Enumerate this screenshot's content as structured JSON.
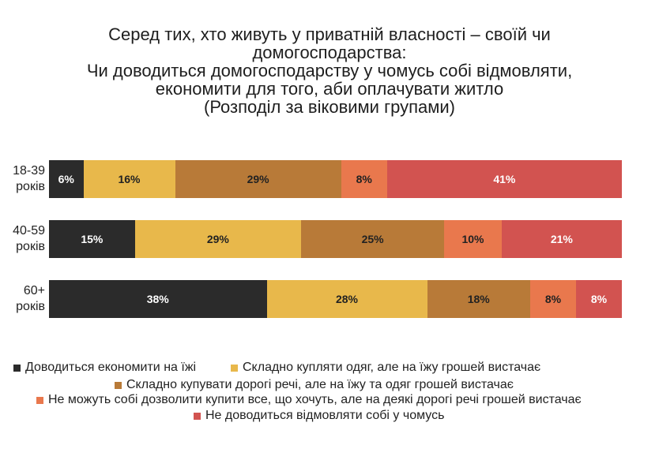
{
  "chart_data": {
    "type": "bar",
    "orientation": "horizontal",
    "stacked": true,
    "title": "Серед тих, хто живуть у приватній власності – своїй чи\nдомогосподарства:\nЧи доводиться домогосподарству у чомусь собі відмовляти,\nекономити для того, аби оплачувати житло",
    "subtitle": "(Розподіл за віковими групами)",
    "xlim": [
      0,
      100
    ],
    "grid": false,
    "legend_position": "bottom",
    "categories": [
      "18-39 років",
      "40-59 років",
      "60+ років"
    ],
    "series": [
      {
        "name": "Доводиться економити на їжі",
        "color": "#2b2b2b",
        "label_color": "#ffffff",
        "values": [
          6,
          15,
          38
        ],
        "data_labels": [
          "6%",
          "15%",
          "38%"
        ]
      },
      {
        "name": "Складно купляти одяг, але на їжу грошей вистачає",
        "color": "#e8b84b",
        "label_color": "#222222",
        "values": [
          16,
          29,
          28
        ],
        "data_labels": [
          "16%",
          "29%",
          "28%"
        ]
      },
      {
        "name": "Складно купувати дорогі речі, але на їжу та одяг грошей вистачає",
        "color": "#b87a38",
        "label_color": "#222222",
        "values": [
          29,
          25,
          18
        ],
        "data_labels": [
          "29%",
          "25%",
          "18%"
        ]
      },
      {
        "name": "Не можуть собі дозволити купити все, що хочуть, але на деякі дорогі речі грошей вистачає",
        "color": "#e9784d",
        "label_color": "#222222",
        "values": [
          8,
          10,
          8
        ],
        "data_labels": [
          "8%",
          "10%",
          "8%"
        ]
      },
      {
        "name": "Не доводиться відмовляти собі у чомусь",
        "color": "#d25350",
        "label_color": "#ffffff",
        "values": [
          41,
          21,
          8
        ],
        "data_labels": [
          "41%",
          "21%",
          "8%"
        ]
      }
    ]
  }
}
